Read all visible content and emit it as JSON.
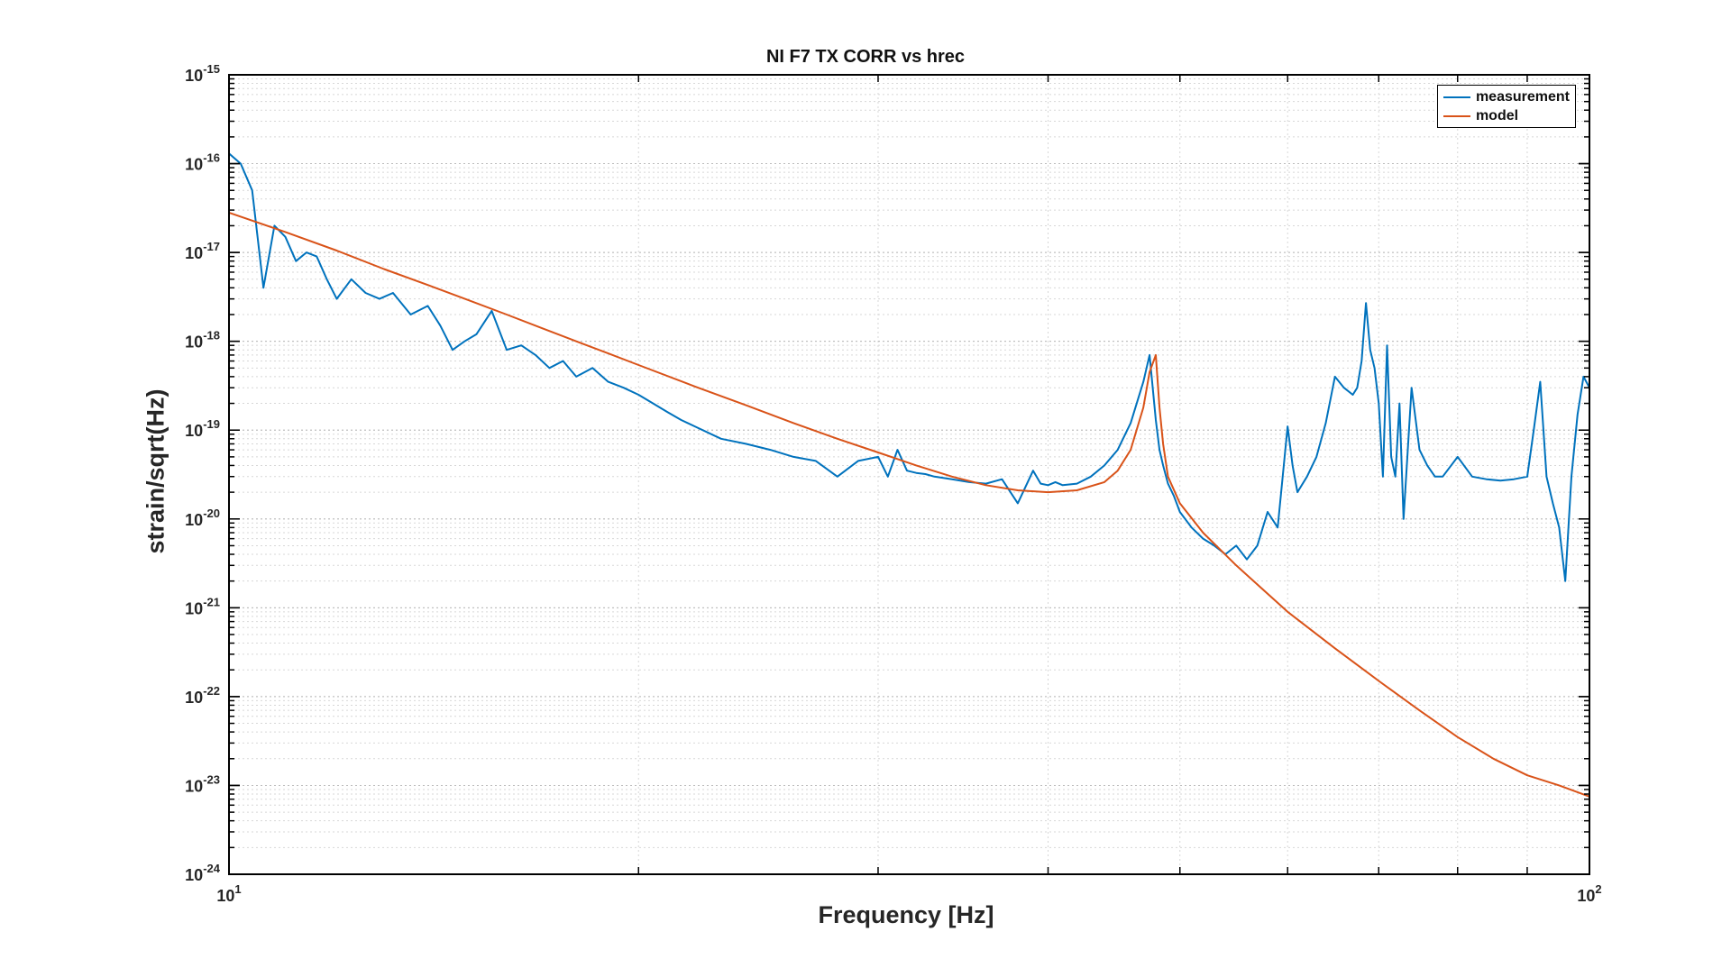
{
  "chart_data": {
    "type": "line",
    "title": "NI F7 TX CORR vs hrec",
    "xlabel": "Frequency [Hz]",
    "ylabel": "strain/sqrt(Hz)",
    "xscale": "log",
    "yscale": "log",
    "xlim": [
      10,
      100
    ],
    "ylim": [
      1e-24,
      1e-15
    ],
    "grid": true,
    "legend_position": "top-right",
    "x_ticks": [
      {
        "base": "10",
        "exp": "1",
        "value": 10
      },
      {
        "base": "10",
        "exp": "2",
        "value": 100
      }
    ],
    "y_ticks": [
      {
        "base": "10",
        "exp": "-15",
        "value": -15
      },
      {
        "base": "10",
        "exp": "-16",
        "value": -16
      },
      {
        "base": "10",
        "exp": "-17",
        "value": -17
      },
      {
        "base": "10",
        "exp": "-18",
        "value": -18
      },
      {
        "base": "10",
        "exp": "-19",
        "value": -19
      },
      {
        "base": "10",
        "exp": "-20",
        "value": -20
      },
      {
        "base": "10",
        "exp": "-21",
        "value": -21
      },
      {
        "base": "10",
        "exp": "-22",
        "value": -22
      },
      {
        "base": "10",
        "exp": "-23",
        "value": -23
      },
      {
        "base": "10",
        "exp": "-24",
        "value": -24
      }
    ],
    "series": [
      {
        "name": "measurement",
        "color": "#0072BD",
        "x": [
          10,
          10.2,
          10.4,
          10.6,
          10.8,
          11.0,
          11.2,
          11.4,
          11.6,
          11.8,
          12.0,
          12.3,
          12.6,
          12.9,
          13.2,
          13.6,
          14.0,
          14.3,
          14.6,
          14.9,
          15.2,
          15.6,
          16.0,
          16.4,
          16.8,
          17.2,
          17.6,
          18.0,
          18.5,
          19.0,
          19.5,
          20.0,
          20.5,
          21.0,
          21.5,
          22.0,
          23.0,
          24.0,
          25.0,
          26.0,
          27.0,
          28.0,
          29.0,
          30.0,
          30.5,
          31.0,
          31.5,
          32.0,
          32.5,
          33.0,
          34.0,
          35.0,
          36.0,
          37.0,
          38.0,
          39.0,
          39.5,
          40.0,
          40.5,
          41.0,
          42.0,
          43.0,
          44.0,
          45.0,
          46.0,
          47.0,
          47.5,
          48.0,
          48.3,
          48.6,
          49.0,
          49.5,
          50.0,
          51.0,
          52.0,
          53.0,
          54.0,
          55.0,
          56.0,
          57.0,
          58.0,
          59.0,
          60.0,
          60.5,
          61.0,
          62.0,
          63.0,
          64.0,
          65.0,
          66.0,
          67.0,
          67.5,
          68.0,
          68.5,
          69.0,
          69.5,
          70.0,
          70.5,
          71.0,
          71.5,
          72.0,
          72.5,
          73.0,
          74.0,
          75.0,
          76.0,
          77.0,
          78.0,
          80.0,
          82.0,
          84.0,
          86.0,
          88.0,
          90.0,
          91.0,
          92.0,
          93.0,
          94.0,
          95.0,
          96.0,
          97.0,
          98.0,
          99.0,
          100.0
        ],
        "y": [
          1.3e-16,
          1e-16,
          5e-17,
          4e-18,
          2e-17,
          1.5e-17,
          8e-18,
          1e-17,
          9e-18,
          5e-18,
          3e-18,
          5e-18,
          3.5e-18,
          3e-18,
          3.5e-18,
          2e-18,
          2.5e-18,
          1.5e-18,
          8e-19,
          1e-18,
          1.2e-18,
          2.2e-18,
          8e-19,
          9e-19,
          7e-19,
          5e-19,
          6e-19,
          4e-19,
          5e-19,
          3.5e-19,
          3e-19,
          2.5e-19,
          2e-19,
          1.6e-19,
          1.3e-19,
          1.1e-19,
          8e-20,
          7e-20,
          6e-20,
          5e-20,
          4.5e-20,
          3e-20,
          4.5e-20,
          5e-20,
          3e-20,
          6e-20,
          3.5e-20,
          3.3e-20,
          3.2e-20,
          3e-20,
          2.8e-20,
          2.6e-20,
          2.5e-20,
          2.8e-20,
          1.5e-20,
          3.5e-20,
          2.5e-20,
          2.4e-20,
          2.6e-20,
          2.4e-20,
          2.5e-20,
          3e-20,
          4e-20,
          6e-20,
          1.2e-19,
          3.5e-19,
          7e-19,
          1.3e-19,
          6e-20,
          4e-20,
          2.5e-20,
          1.8e-20,
          1.2e-20,
          8e-21,
          6e-21,
          5e-21,
          4e-21,
          5e-21,
          3.5e-21,
          5e-21,
          1.2e-20,
          8e-21,
          1.1e-19,
          4e-20,
          2e-20,
          3e-20,
          5e-20,
          1.2e-19,
          4e-19,
          3e-19,
          2.5e-19,
          3e-19,
          6e-19,
          2.7e-18,
          8e-19,
          5e-19,
          2e-19,
          3e-20,
          9e-19,
          5e-20,
          3e-20,
          2e-19,
          1e-20,
          3e-19,
          6e-20,
          4e-20,
          3e-20,
          3e-20,
          5e-20,
          3e-20,
          2.8e-20,
          2.7e-20,
          2.8e-20,
          3e-20,
          1e-19,
          3.5e-19,
          3e-20,
          1.5e-20,
          8e-21,
          2e-21,
          3e-20,
          1.5e-19,
          4e-19,
          3e-19
        ]
      },
      {
        "name": "model",
        "color": "#D95319",
        "x": [
          10,
          11,
          12,
          13,
          14,
          15,
          16,
          17,
          18,
          19,
          20,
          22,
          24,
          26,
          28,
          30,
          32,
          34,
          36,
          38,
          40,
          42,
          44,
          45,
          46,
          47,
          47.5,
          48,
          48.3,
          48.6,
          49,
          50,
          52,
          55,
          60,
          65,
          70,
          75,
          80,
          85,
          90,
          95,
          100
        ],
        "y": [
          2.8e-17,
          1.7e-17,
          1.05e-17,
          6.5e-18,
          4.3e-18,
          2.9e-18,
          2e-18,
          1.4e-18,
          1e-18,
          7.3e-19,
          5.4e-19,
          3.1e-19,
          1.9e-19,
          1.2e-19,
          8e-20,
          5.6e-20,
          4e-20,
          3e-20,
          2.4e-20,
          2.1e-20,
          2e-20,
          2.1e-20,
          2.6e-20,
          3.5e-20,
          6e-20,
          1.8e-19,
          4.5e-19,
          7e-19,
          1.8e-19,
          7e-20,
          3e-20,
          1.5e-20,
          7e-21,
          3e-21,
          9e-22,
          3.5e-22,
          1.5e-22,
          7e-23,
          3.5e-23,
          2e-23,
          1.3e-23,
          1e-23,
          7.5e-24
        ]
      }
    ]
  }
}
